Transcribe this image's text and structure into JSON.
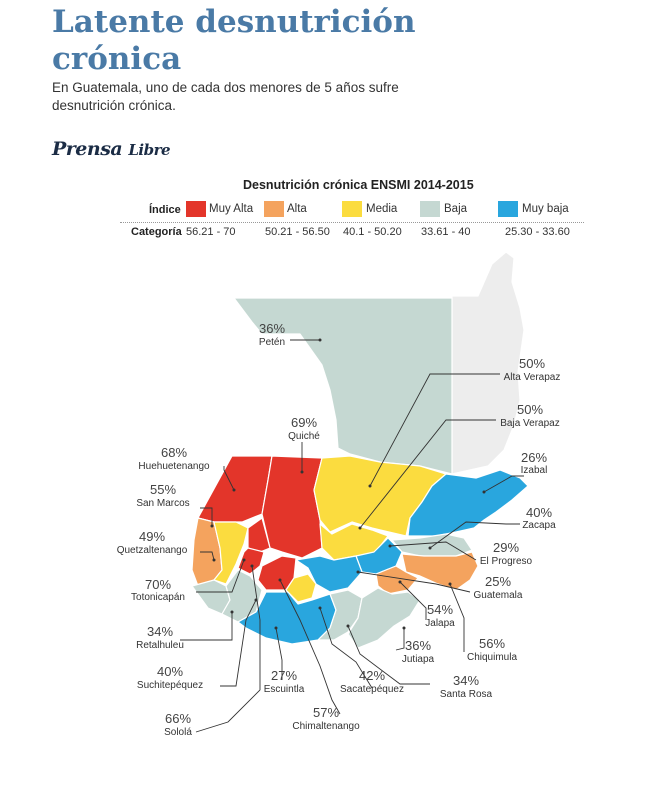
{
  "header": {
    "title_line1": "Latente desnutrición",
    "title_line2": "crónica",
    "subtitle_line1": "En Guatemala, uno de cada dos menores de 5 años sufre",
    "subtitle_line2": "desnutrición crónica.",
    "brand_part1": "Prensa",
    "brand_part2": "Libre"
  },
  "legend": {
    "title": "Desnutrición crónica ENSMI 2014-2015",
    "indice_label": "Índice",
    "categoria_label": "Categoría",
    "items": [
      {
        "label": "Muy Alta",
        "range": "56.21 - 70",
        "color": "#e3352a"
      },
      {
        "label": "Alta",
        "range": "50.21 - 56.50",
        "color": "#f4a35e"
      },
      {
        "label": "Media",
        "range": "40.1 - 50.20",
        "color": "#fbdc3f"
      },
      {
        "label": "Baja",
        "range": "33.61 - 40",
        "color": "#c5d8d2"
      },
      {
        "label": "Muy baja",
        "range": "25.30 - 33.60",
        "color": "#29a6de"
      }
    ]
  },
  "other_color": "#ededed",
  "departments": [
    {
      "name": "Petén",
      "pct": "36%",
      "category": "Baja"
    },
    {
      "name": "Alta Verapaz",
      "pct": "50%",
      "category": "Media"
    },
    {
      "name": "Baja Verapaz",
      "pct": "50%",
      "category": "Media"
    },
    {
      "name": "Quiché",
      "pct": "69%",
      "category": "Muy Alta"
    },
    {
      "name": "Huehuetenango",
      "pct": "68%",
      "category": "Muy Alta"
    },
    {
      "name": "Izabal",
      "pct": "26%",
      "category": "Muy baja"
    },
    {
      "name": "San Marcos",
      "pct": "55%",
      "category": "Alta"
    },
    {
      "name": "Zacapa",
      "pct": "40%",
      "category": "Baja"
    },
    {
      "name": "Quetzaltenango",
      "pct": "49%",
      "category": "Media"
    },
    {
      "name": "El Progreso",
      "pct": "29%",
      "category": "Muy baja"
    },
    {
      "name": "Totonicapán",
      "pct": "70%",
      "category": "Muy Alta"
    },
    {
      "name": "Guatemala",
      "pct": "25%",
      "category": "Muy baja"
    },
    {
      "name": "Jalapa",
      "pct": "54%",
      "category": "Alta"
    },
    {
      "name": "Retalhuleu",
      "pct": "34%",
      "category": "Baja"
    },
    {
      "name": "Chiquimula",
      "pct": "56%",
      "category": "Alta"
    },
    {
      "name": "Jutiapa",
      "pct": "36%",
      "category": "Baja"
    },
    {
      "name": "Suchitepéquez",
      "pct": "40%",
      "category": "Baja"
    },
    {
      "name": "Santa Rosa",
      "pct": "34%",
      "category": "Baja"
    },
    {
      "name": "Sacatepéquez",
      "pct": "42%",
      "category": "Media"
    },
    {
      "name": "Escuintla",
      "pct": "27%",
      "category": "Muy baja"
    },
    {
      "name": "Chimaltenango",
      "pct": "57%",
      "category": "Muy Alta"
    },
    {
      "name": "Sololá",
      "pct": "66%",
      "category": "Muy Alta"
    }
  ]
}
